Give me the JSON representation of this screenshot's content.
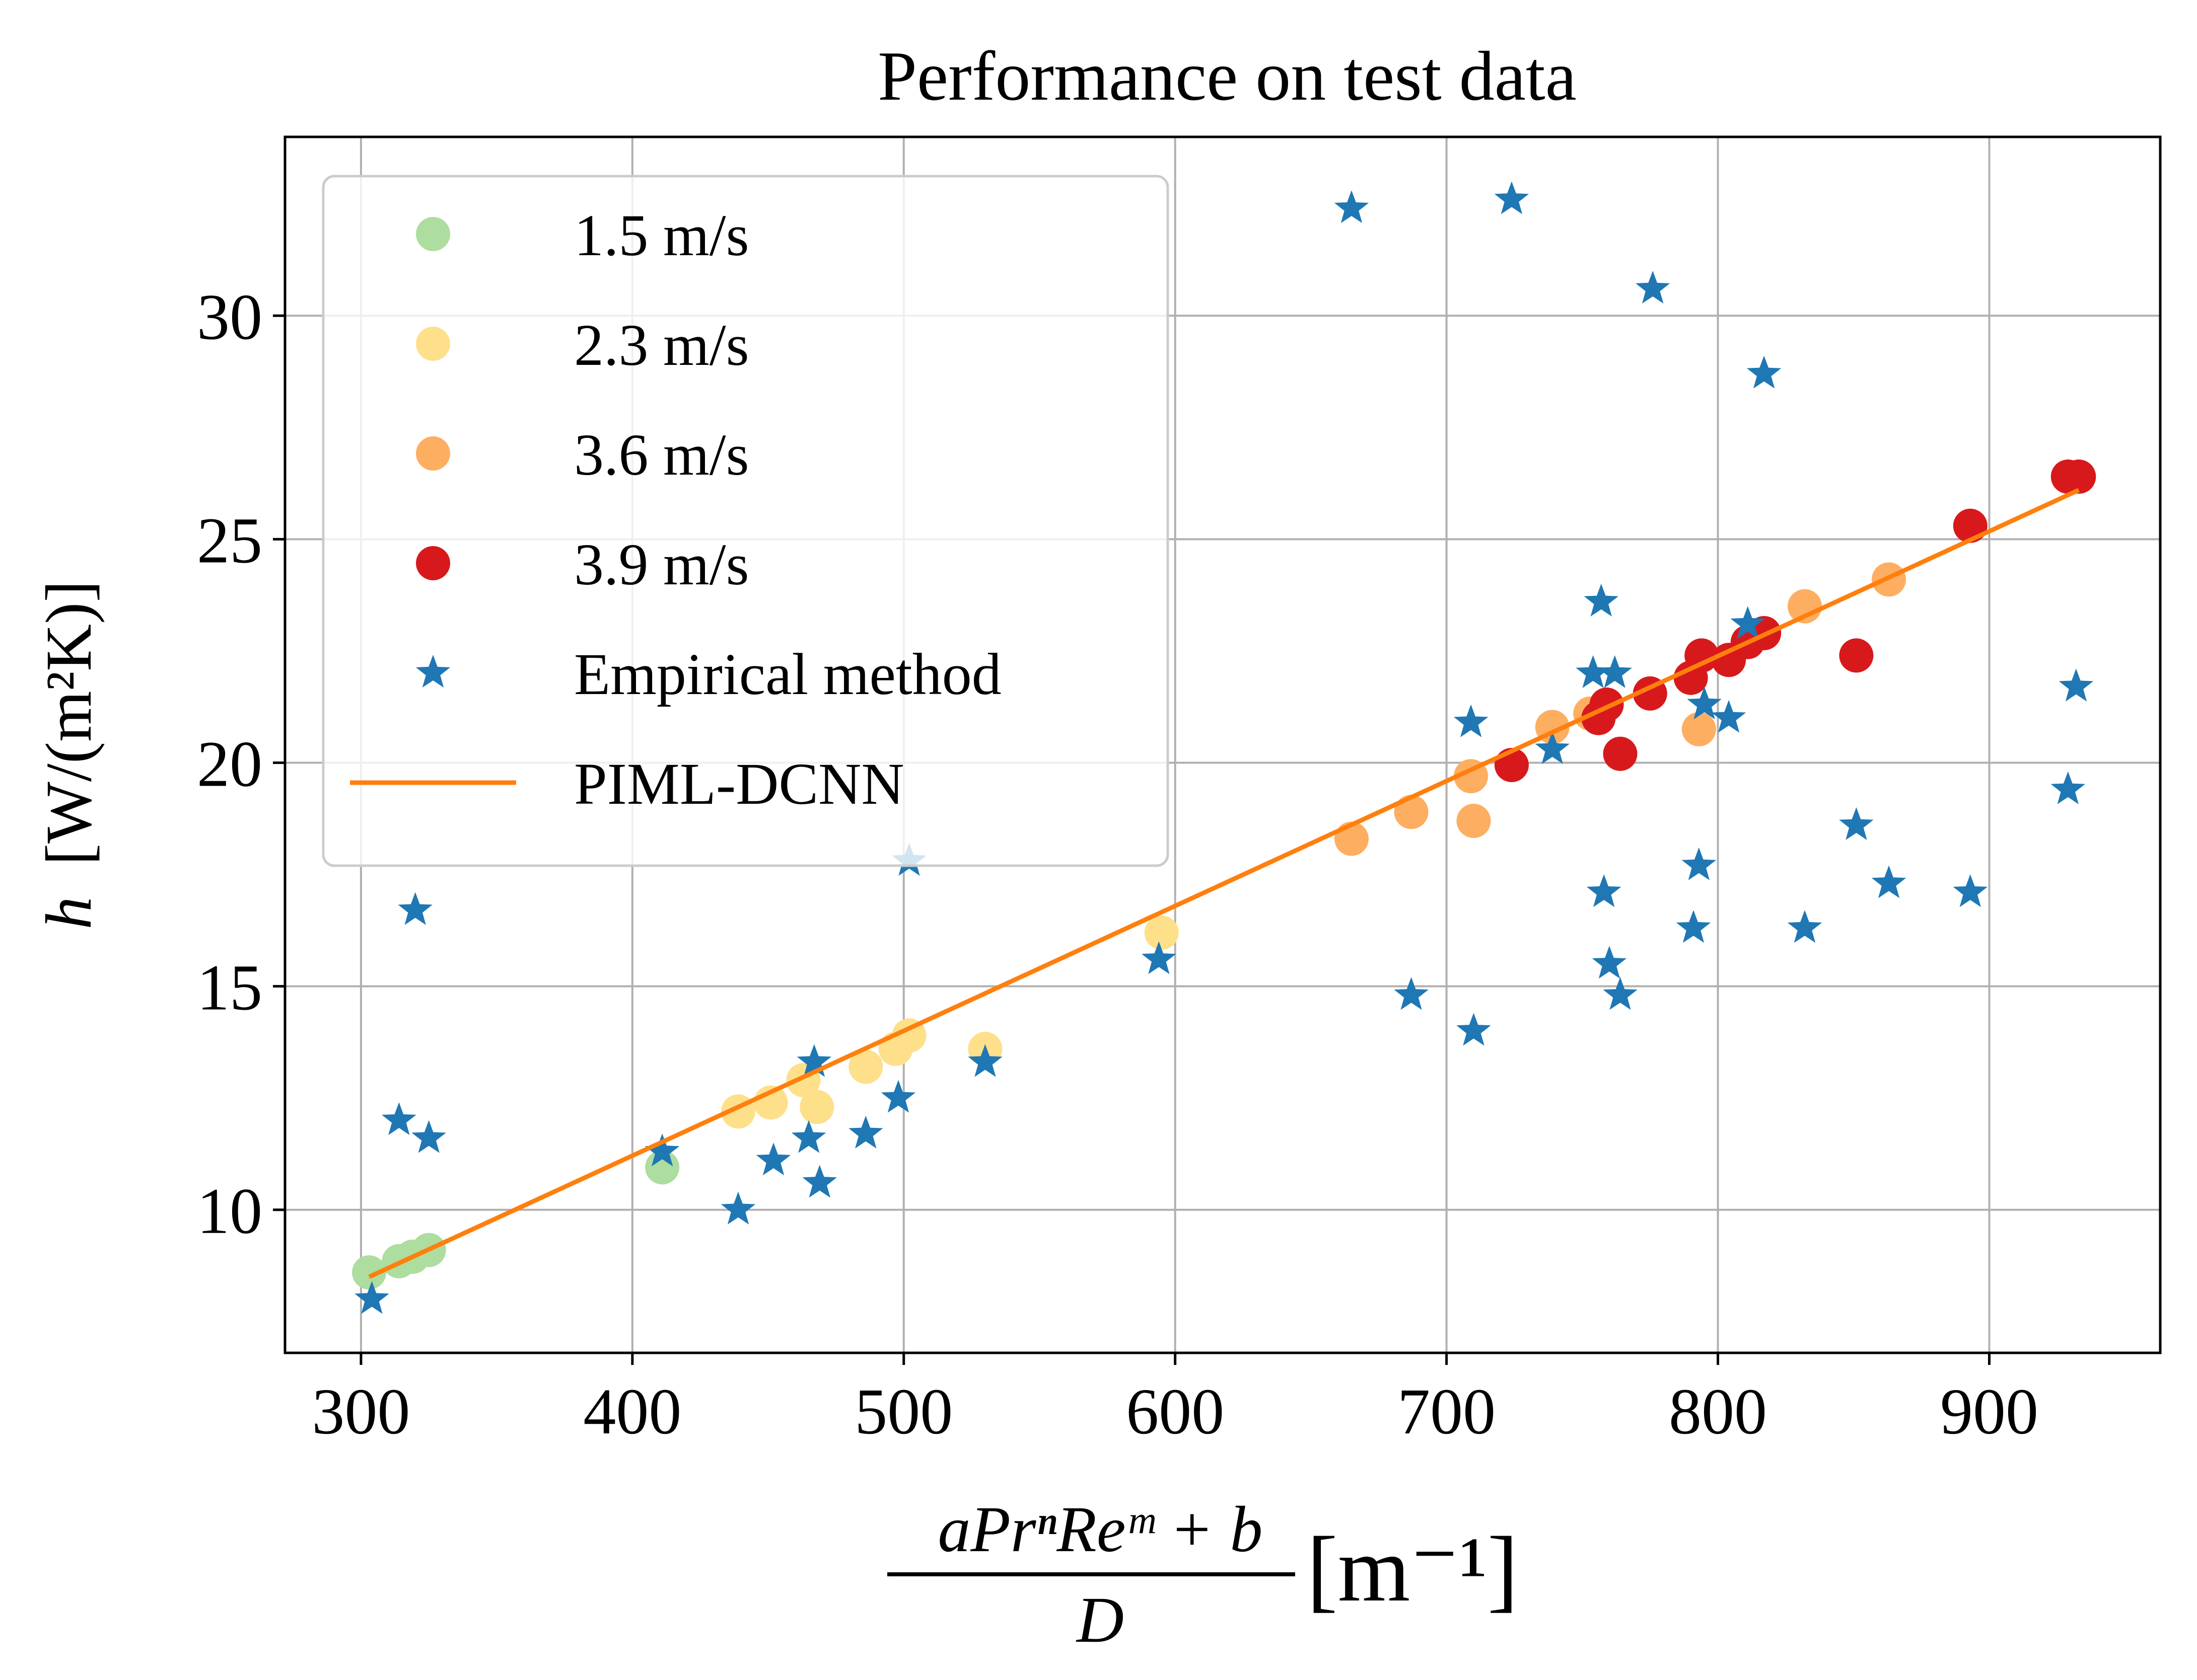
{
  "chart_data": {
    "type": "scatter",
    "title": "Performance on test data",
    "xlabel": {
      "numerator": "aPrⁿReᵐ + b",
      "denominator": "D",
      "unit": "[m⁻¹]"
    },
    "ylabel": {
      "var": "h",
      "unit": "[W/(m²K)]"
    },
    "xlim": [
      272,
      963
    ],
    "ylim": [
      6.8,
      34.0
    ],
    "xticks": [
      300,
      400,
      500,
      600,
      700,
      800,
      900
    ],
    "yticks": [
      10,
      15,
      20,
      25,
      30
    ],
    "grid": true,
    "legend_position": "top-left",
    "colors": {
      "green": "#addd9f",
      "yellow": "#fee08b",
      "orange": "#fdae61",
      "red": "#d7191c",
      "blue": "#1f77b4",
      "line": "#ff7f0e"
    },
    "series": [
      {
        "name": "1.5 m/s",
        "marker": "circle",
        "color": "#addd9f",
        "points": [
          [
            303,
            8.6
          ],
          [
            314,
            8.85
          ],
          [
            319,
            8.95
          ],
          [
            325,
            9.1
          ],
          [
            411,
            10.95
          ]
        ]
      },
      {
        "name": "2.3 m/s",
        "marker": "circle",
        "color": "#fee08b",
        "points": [
          [
            439,
            12.2
          ],
          [
            451,
            12.4
          ],
          [
            463,
            12.9
          ],
          [
            468,
            12.3
          ],
          [
            486,
            13.2
          ],
          [
            497,
            13.6
          ],
          [
            502,
            13.9
          ],
          [
            530,
            13.6
          ],
          [
            595,
            16.2
          ]
        ]
      },
      {
        "name": "3.6 m/s",
        "marker": "circle",
        "color": "#fdae61",
        "points": [
          [
            665,
            18.3
          ],
          [
            687,
            18.9
          ],
          [
            709,
            19.7
          ],
          [
            710,
            18.7
          ],
          [
            739,
            20.8
          ],
          [
            753,
            21.1
          ],
          [
            793,
            20.75
          ],
          [
            832,
            23.5
          ],
          [
            863,
            24.1
          ]
        ]
      },
      {
        "name": "3.9 m/s",
        "marker": "circle",
        "color": "#d7191c",
        "points": [
          [
            724,
            19.95
          ],
          [
            756,
            21.0
          ],
          [
            759,
            21.3
          ],
          [
            764,
            20.2
          ],
          [
            775,
            21.55
          ],
          [
            790,
            21.9
          ],
          [
            794,
            22.4
          ],
          [
            804,
            22.3
          ],
          [
            811,
            22.7
          ],
          [
            817,
            22.9
          ],
          [
            851,
            22.4
          ],
          [
            893,
            25.3
          ],
          [
            929,
            26.4
          ],
          [
            933,
            26.4
          ]
        ]
      },
      {
        "name": "Empirical method",
        "marker": "star",
        "color": "#1f77b4",
        "points": [
          [
            304,
            8.0
          ],
          [
            314,
            12.0
          ],
          [
            320,
            16.7
          ],
          [
            325,
            11.6
          ],
          [
            411,
            11.3
          ],
          [
            439,
            10.0
          ],
          [
            452,
            11.1
          ],
          [
            465,
            11.6
          ],
          [
            467,
            13.3
          ],
          [
            469,
            10.6
          ],
          [
            486,
            11.7
          ],
          [
            498,
            12.5
          ],
          [
            502,
            17.8
          ],
          [
            530,
            13.3
          ],
          [
            594,
            15.6
          ],
          [
            665,
            32.4
          ],
          [
            687,
            14.8
          ],
          [
            709,
            20.9
          ],
          [
            710,
            14.0
          ],
          [
            724,
            32.6
          ],
          [
            739,
            20.3
          ],
          [
            754,
            22.0
          ],
          [
            757,
            23.6
          ],
          [
            758,
            17.1
          ],
          [
            760,
            15.5
          ],
          [
            762,
            22.0
          ],
          [
            764,
            14.8
          ],
          [
            776,
            30.6
          ],
          [
            791,
            16.3
          ],
          [
            793,
            17.7
          ],
          [
            795,
            21.3
          ],
          [
            804,
            21.0
          ],
          [
            811,
            23.1
          ],
          [
            817,
            28.7
          ],
          [
            832,
            16.3
          ],
          [
            851,
            18.6
          ],
          [
            863,
            17.3
          ],
          [
            893,
            17.1
          ],
          [
            929,
            19.4
          ],
          [
            932,
            21.7
          ]
        ]
      },
      {
        "name": "PIML-DCNN",
        "marker": "line",
        "color": "#ff7f0e",
        "points": [
          [
            303,
            8.5
          ],
          [
            933,
            26.1
          ]
        ]
      }
    ]
  }
}
